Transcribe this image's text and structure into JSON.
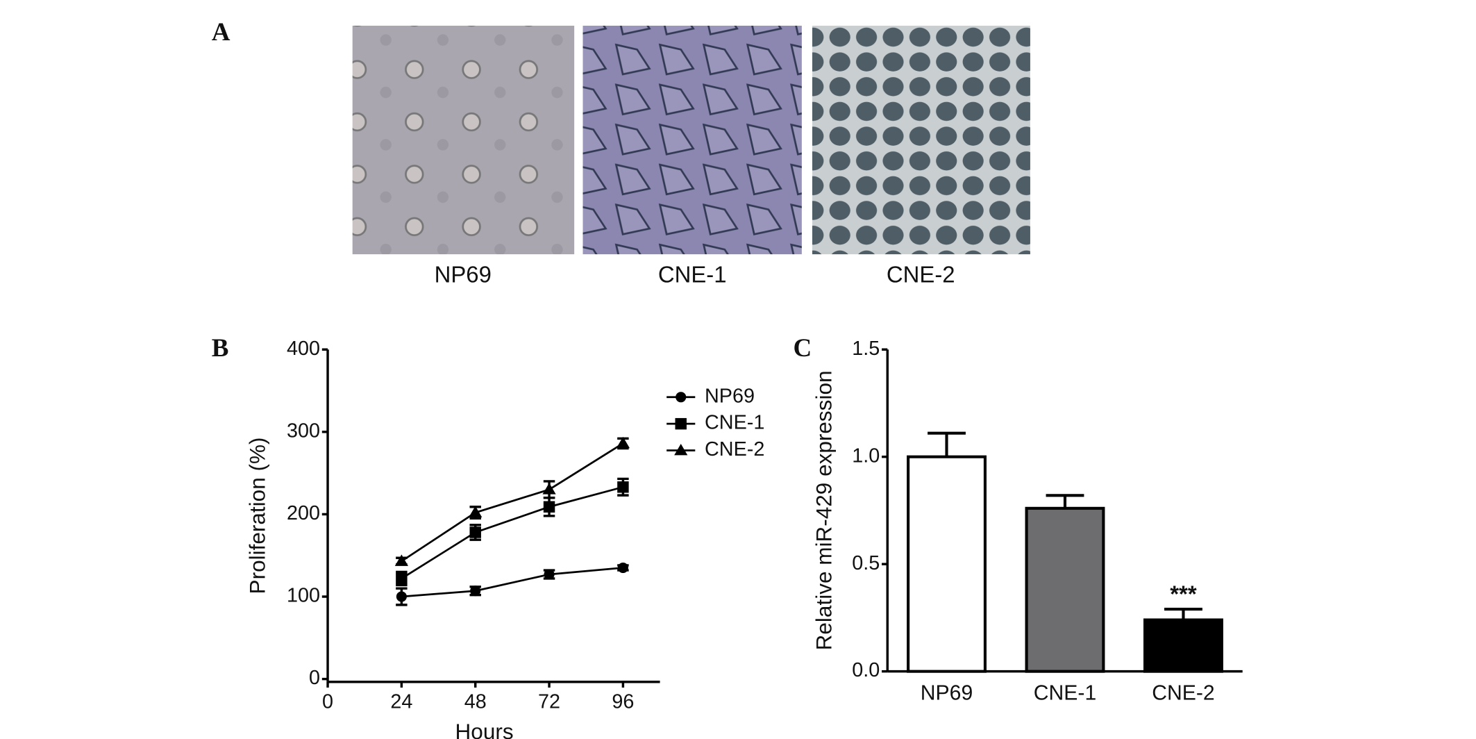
{
  "figure": {
    "panel_label": "A",
    "images": [
      {
        "caption": "NP69"
      },
      {
        "caption": "CNE-1"
      },
      {
        "caption": "CNE-2"
      }
    ]
  },
  "chart_data": [
    {
      "type": "line",
      "panel_label": "B",
      "xlabel": "Hours",
      "ylabel": "Proliferation (%)",
      "x": [
        24,
        48,
        72,
        96
      ],
      "xlim": [
        0,
        108
      ],
      "xticks": [
        0,
        24,
        48,
        72,
        96
      ],
      "ylim": [
        0,
        400
      ],
      "yticks": [
        0,
        100,
        200,
        300,
        400
      ],
      "grid": false,
      "legend": "right",
      "series": [
        {
          "name": "NP69",
          "color": "#000000",
          "marker": "circle",
          "values": [
            100,
            107,
            127,
            135
          ],
          "errors": [
            10,
            5,
            5,
            3
          ]
        },
        {
          "name": "CNE-1",
          "color": "#000000",
          "marker": "square",
          "values": [
            122,
            178,
            209,
            233
          ],
          "errors": [
            8,
            9,
            11,
            10
          ]
        },
        {
          "name": "CNE-2",
          "color": "#000000",
          "marker": "triangle",
          "values": [
            143,
            202,
            230,
            286
          ],
          "errors": [
            4,
            7,
            10,
            6
          ]
        }
      ]
    },
    {
      "type": "bar",
      "panel_label": "C",
      "ylabel": "Relative miR-429 expression",
      "categories": [
        "NP69",
        "CNE-1",
        "CNE-2"
      ],
      "values": [
        1.0,
        0.76,
        0.24
      ],
      "errors": [
        0.11,
        0.06,
        0.05
      ],
      "colors": [
        "#ffffff",
        "#6d6d70",
        "#000000"
      ],
      "annotations": [
        null,
        null,
        "***"
      ],
      "ylim": [
        0,
        1.5
      ],
      "yticks": [
        {
          "value": 0,
          "label": "0.0"
        },
        {
          "value": 0.5,
          "label": "0.5"
        },
        {
          "value": 1,
          "label": "1.0"
        },
        1.5
      ],
      "grid": false
    }
  ]
}
